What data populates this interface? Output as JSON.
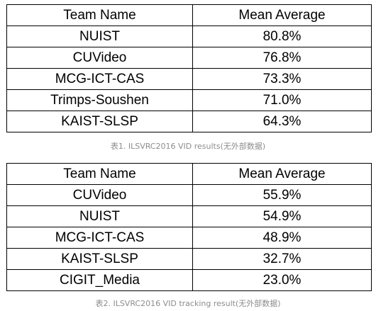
{
  "table1": {
    "headers": [
      "Team Name",
      "Mean Average"
    ],
    "rows": [
      [
        "NUIST",
        "80.8%"
      ],
      [
        "CUVideo",
        "76.8%"
      ],
      [
        "MCG-ICT-CAS",
        "73.3%"
      ],
      [
        "Trimps-Soushen",
        "71.0%"
      ],
      [
        "KAIST-SLSP",
        "64.3%"
      ]
    ],
    "caption": "表1. ILSVRC2016 VID results(无外部数据)"
  },
  "table2": {
    "headers": [
      "Team Name",
      "Mean Average"
    ],
    "rows": [
      [
        "CUVideo",
        "55.9%"
      ],
      [
        "NUIST",
        "54.9%"
      ],
      [
        "MCG-ICT-CAS",
        "48.9%"
      ],
      [
        "KAIST-SLSP",
        "32.7%"
      ],
      [
        "CIGIT_Media",
        "23.0%"
      ]
    ],
    "caption": "表2. ILSVRC2016 VID tracking result(无外部数据)"
  }
}
